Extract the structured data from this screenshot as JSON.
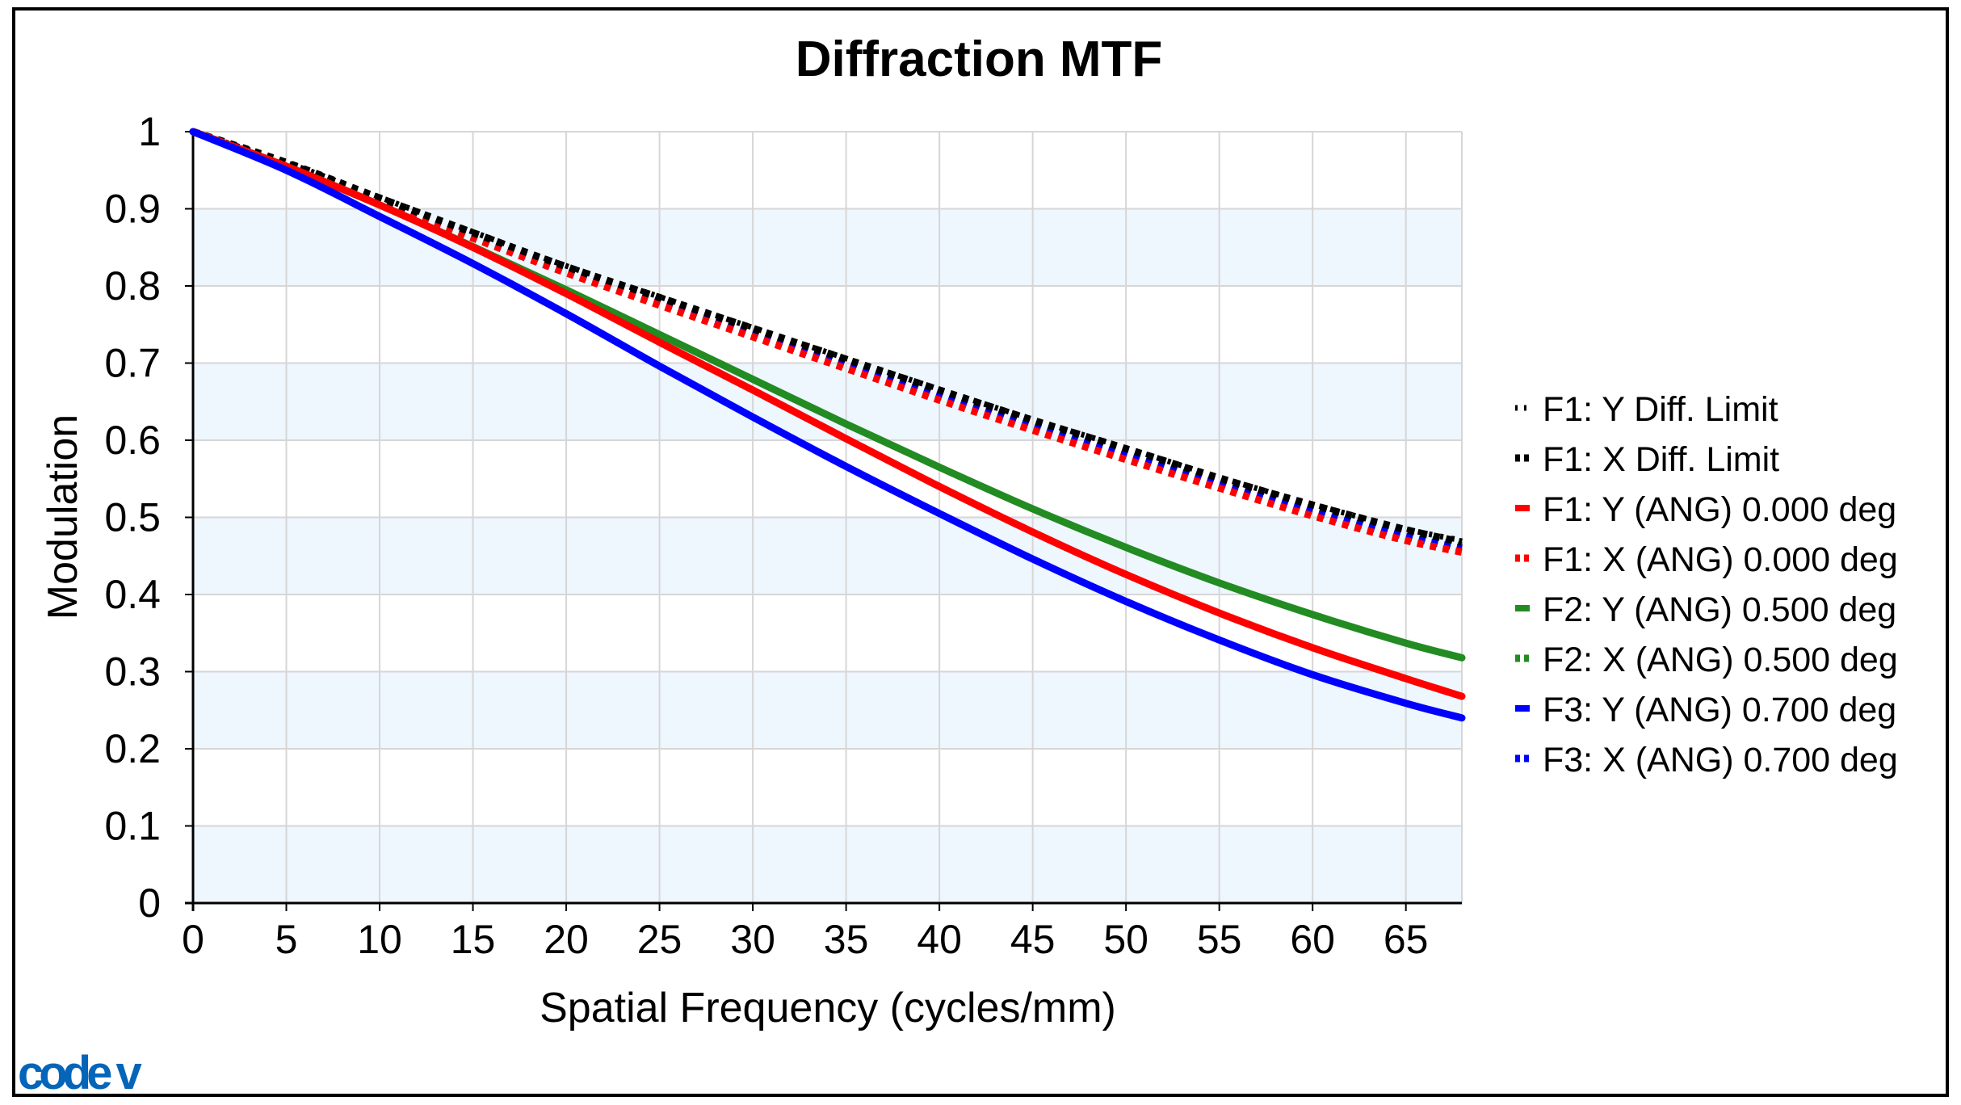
{
  "chart_data": {
    "type": "line",
    "title": "Diffraction MTF",
    "xlabel": "Spatial Frequency (cycles/mm)",
    "ylabel": "Modulation",
    "xlim": [
      0,
      68
    ],
    "ylim": [
      0,
      1
    ],
    "xticks": [
      0,
      5,
      10,
      15,
      20,
      25,
      30,
      35,
      40,
      45,
      50,
      55,
      60,
      65
    ],
    "yticks": [
      0,
      0.1,
      0.2,
      0.3,
      0.4,
      0.5,
      0.6,
      0.7,
      0.8,
      0.9,
      1
    ],
    "ytick_labels": [
      "0",
      "0.1",
      "0.2",
      "0.3",
      "0.4",
      "0.5",
      "0.6",
      "0.7",
      "0.8",
      "0.9",
      "1"
    ],
    "grid": true,
    "legend_position": "right",
    "x": [
      0,
      5,
      10,
      15,
      20,
      25,
      30,
      35,
      40,
      45,
      50,
      55,
      60,
      65,
      68
    ],
    "series": [
      {
        "name": "F1: Y Diff. Limit",
        "color": "#000000",
        "style": "dotted-small",
        "values": [
          1,
          0.96,
          0.915,
          0.87,
          0.826,
          0.786,
          0.746,
          0.706,
          0.666,
          0.627,
          0.59,
          0.552,
          0.517,
          0.485,
          0.47
        ]
      },
      {
        "name": "F1: X Diff. Limit",
        "color": "#000000",
        "style": "dotted",
        "values": [
          1,
          0.96,
          0.914,
          0.869,
          0.825,
          0.785,
          0.745,
          0.705,
          0.665,
          0.626,
          0.589,
          0.551,
          0.516,
          0.484,
          0.468
        ]
      },
      {
        "name": "F1: Y (ANG) 0.000 deg",
        "color": "#ff0000",
        "style": "solid",
        "values": [
          1,
          0.955,
          0.905,
          0.85,
          0.79,
          0.727,
          0.665,
          0.602,
          0.54,
          0.481,
          0.426,
          0.376,
          0.331,
          0.291,
          0.268
        ]
      },
      {
        "name": "F1: X (ANG) 0.000 deg",
        "color": "#ff0000",
        "style": "dotted",
        "values": [
          1,
          0.957,
          0.908,
          0.862,
          0.817,
          0.775,
          0.734,
          0.693,
          0.652,
          0.613,
          0.575,
          0.538,
          0.502,
          0.47,
          0.455
        ]
      },
      {
        "name": "F2: Y (ANG) 0.500 deg",
        "color": "#228b22",
        "style": "solid",
        "values": [
          1,
          0.955,
          0.905,
          0.851,
          0.795,
          0.737,
          0.679,
          0.621,
          0.565,
          0.511,
          0.461,
          0.415,
          0.374,
          0.337,
          0.318
        ]
      },
      {
        "name": "F2: X (ANG) 0.500 deg",
        "color": "#228b22",
        "style": "dotted",
        "values": [
          1,
          0.958,
          0.911,
          0.866,
          0.821,
          0.78,
          0.74,
          0.7,
          0.66,
          0.621,
          0.584,
          0.546,
          0.511,
          0.479,
          0.463
        ]
      },
      {
        "name": "F3: Y (ANG) 0.700 deg",
        "color": "#0000ff",
        "style": "solid",
        "values": [
          1,
          0.95,
          0.89,
          0.829,
          0.764,
          0.696,
          0.63,
          0.566,
          0.505,
          0.446,
          0.391,
          0.341,
          0.296,
          0.259,
          0.24
        ]
      },
      {
        "name": "F3: X (ANG) 0.700 deg",
        "color": "#0000ff",
        "style": "dotted",
        "values": [
          1,
          0.957,
          0.91,
          0.864,
          0.819,
          0.778,
          0.737,
          0.697,
          0.657,
          0.617,
          0.58,
          0.543,
          0.507,
          0.475,
          0.46
        ]
      }
    ]
  },
  "logo": {
    "text": "code v",
    "color": "#0565b8"
  }
}
